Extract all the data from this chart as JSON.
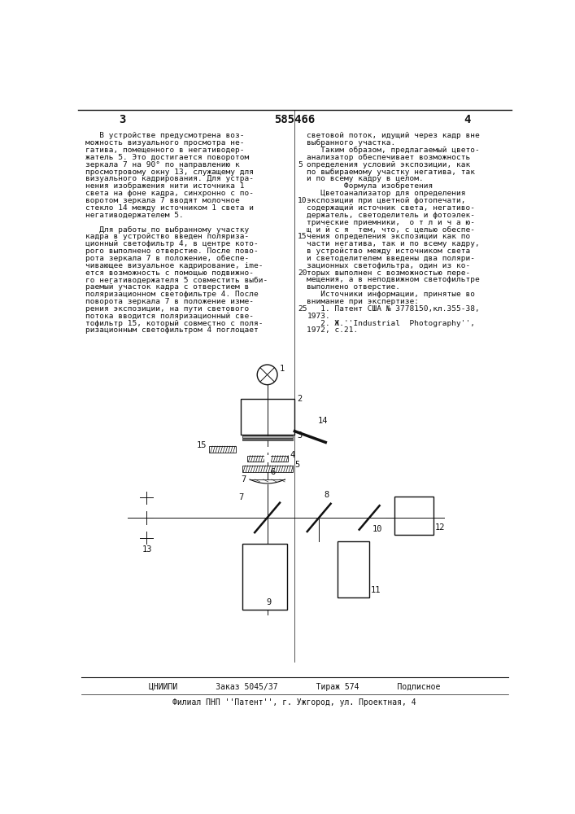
{
  "bg_color": "#ffffff",
  "title_number": "585466",
  "page_left": "3",
  "page_right": "4",
  "left_col_lines": [
    "   В устройстве предусмотрена воз-",
    "можность визуального просмотра не-",
    "гатива, помещенного в негативодер-",
    "жатель 5. Это достигается поворотом",
    "зеркала 7 на 90° по направлению к",
    "просмотровому окну 13, служащему для",
    "визуального кадрирования. Для устра-",
    "нения изображения нити источника 1",
    "света на фоне кадра, синхронно с по-",
    "воротом зеркала 7 вводят молочное",
    "стекло 14 между источником 1 света и",
    "негативодержателем 5.",
    "",
    "   Для работы по выбранному участку",
    "кадра в устройство введен поляриза-",
    "ционный светофильтр 4, в центре кото-",
    "рого выполнено отверстие. После пово-",
    "рота зеркала 7 в положение, обеспе-",
    "чивающее визуальное кадрирование, ime-",
    "ется возможность с помощью подвижно-",
    "го негативодержателя 5 совместить выби-",
    "раемый участок кадра с отверстием в",
    "поляризационном светофильтре 4. После",
    "поворота зеркала 7 в положение изме-",
    "рения экспозиции, на пути светового",
    "потока вводится поляризационный све-",
    "тофильтр 15, который совместно с поля-",
    "ризационным светофильтром 4 поглощает"
  ],
  "right_col_lines": [
    "световой поток, идущий через кадр вне",
    "выбранного участка.",
    "   Таким образом, предлагаемый цвето-",
    "анализатор обеспечивает возможность",
    "определения условий экспозиции, как",
    "по выбираемому участку негатива, так",
    "и по всему кадру в целом.",
    "        Формула изобретения",
    "   Цветоанализатор для определения",
    "экспозиции при цветной фотопечати,",
    "содержащий источник света, негативо-",
    "держатель, светоделитель и фотоэлек-",
    "трические приемники,  о т л и ч а ю-",
    "щ и й с я  тем, что, с целью обеспе-",
    "чения определения экспозиции как по",
    "части негатива, так и по всему кадру,",
    "в устройство между источником света",
    "и светоделителем введены два поляри-",
    "зационных светофильтра, один из ко-",
    "торых выполнен с возможностью пере-",
    "мещения, а в неподвижном светофильтре",
    "выполнено отверстие.",
    "   Источники информации, принятые во",
    "внимание при экспертизе:",
    "   1. Патент США № 3778150,кл.355-38,",
    "1973.",
    "   2. Ж.''Industrial  Photography'',",
    "1972, с.21."
  ],
  "line_numbers": [
    5,
    10,
    15,
    20,
    25
  ],
  "line_number_rows": [
    4,
    9,
    14,
    19,
    24
  ],
  "footer_line1": "ЦНИИПИ        Заказ 5045/37        Тираж 574        Подписное",
  "footer_line2": "Филиал ПНП ''Патент'', г. Ужгород, ул. Проектная, 4"
}
